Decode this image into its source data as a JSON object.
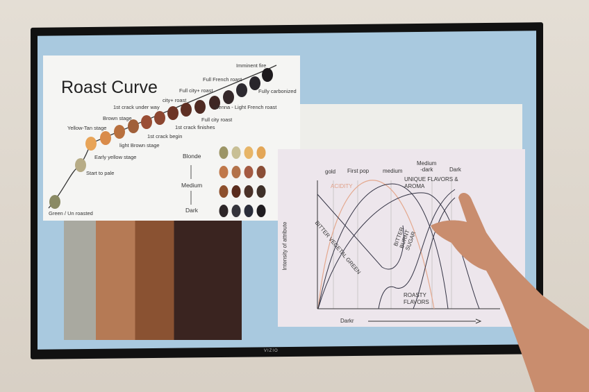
{
  "slide1": {
    "title": "Roast Curve",
    "stages": [
      "Green / Un roasted",
      "Start to pale",
      "Early yellow stage",
      "Yellow-Tan stage",
      "light Brown stage",
      "Brown stage",
      "1st crack begin",
      "1st crack under way",
      "1st crack finishes",
      "city+ roast",
      "Full city roast",
      "Full city+ roast",
      "Vienna - Light French roast",
      "Full French roast",
      "Fully carbonized",
      "Imminent fire"
    ],
    "bean_colors": [
      "#8a8a64",
      "#b7ac86",
      "#e8a458",
      "#d98b4a",
      "#b8703e",
      "#a0603a",
      "#9a4e35",
      "#8c4630",
      "#6e3526",
      "#5f3024",
      "#4f2a22",
      "#3f2623",
      "#34282a",
      "#2d2a30",
      "#28252b",
      "#1e1b1e"
    ],
    "scale": {
      "top": "Blonde",
      "middle": "Medium",
      "bottom": "Dark"
    },
    "scale_colors": [
      [
        "#9c9566",
        "#c8bf95",
        "#e7b568",
        "#e3a657"
      ],
      [
        "#c0784a",
        "#b3724a",
        "#a45a42",
        "#8a4e36"
      ],
      [
        "#8d4f2c",
        "#5a2c1d",
        "#4a3128",
        "#3e3029"
      ],
      [
        "#2d2628",
        "#34343b",
        "#2a2d39",
        "#1f1c1f"
      ]
    ]
  },
  "slide2": {
    "stages": [
      "gold",
      "First pop",
      "medium",
      "Medium\n-dark",
      "Dark"
    ],
    "labels": {
      "acidity": "ACIDITY",
      "unique": "UNIQUE FLAVORS &",
      "aroma": "AROMA",
      "bitter_green": "BITTER VEGETAL GREEN",
      "bitter_sugar": "BITTER BURNT SUGAR",
      "roasty1": "ROASTY",
      "roasty2": "FLAVORS"
    },
    "ylabel": "Intensity of attribute",
    "xlabel": "Darkr"
  },
  "brand": "VIZIO"
}
